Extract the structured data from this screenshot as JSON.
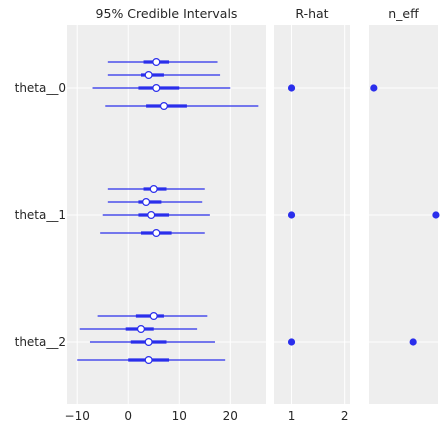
{
  "chart_data": {
    "type": "forest",
    "color": "#2a2eec",
    "rows": [
      "theta__0",
      "theta__1",
      "theta__2"
    ],
    "panels": [
      {
        "title": "95% Credible Intervals",
        "xlim": [
          -12,
          27
        ],
        "xticks": [
          -10,
          0,
          10,
          20
        ],
        "xtick_labels": [
          "−10",
          "0",
          "10",
          "20"
        ],
        "groups": [
          [
            {
              "lo": -4,
              "q1": 3,
              "median": 5.5,
              "q3": 8,
              "hi": 17.5
            },
            {
              "lo": -4,
              "q1": 2.5,
              "median": 4,
              "q3": 7,
              "hi": 18
            },
            {
              "lo": -7,
              "q1": 2,
              "median": 5.5,
              "q3": 10,
              "hi": 20
            },
            {
              "lo": -4.5,
              "q1": 3.5,
              "median": 7,
              "q3": 11.5,
              "hi": 25.5
            }
          ],
          [
            {
              "lo": -4,
              "q1": 3,
              "median": 5,
              "q3": 7.5,
              "hi": 15
            },
            {
              "lo": -4,
              "q1": 2,
              "median": 3.5,
              "q3": 6.5,
              "hi": 14.5
            },
            {
              "lo": -5,
              "q1": 2,
              "median": 4.5,
              "q3": 8,
              "hi": 16
            },
            {
              "lo": -5.5,
              "q1": 2.5,
              "median": 5.5,
              "q3": 8.5,
              "hi": 15
            }
          ],
          [
            {
              "lo": -6,
              "q1": 1.5,
              "median": 5,
              "q3": 7,
              "hi": 15.5
            },
            {
              "lo": -9.5,
              "q1": -0.5,
              "median": 2.5,
              "q3": 5,
              "hi": 13.5
            },
            {
              "lo": -7.5,
              "q1": 0.5,
              "median": 4,
              "q3": 7.5,
              "hi": 17
            },
            {
              "lo": -10,
              "q1": 0,
              "median": 4,
              "q3": 8,
              "hi": 19
            }
          ]
        ]
      },
      {
        "title": "R-hat",
        "xlim": [
          0.67,
          2.1
        ],
        "xticks": [
          1,
          2
        ],
        "xtick_labels": [
          "1",
          "2"
        ],
        "values": [
          1.0,
          1.0,
          1.0
        ]
      },
      {
        "title": "n_eff",
        "xlim": [
          0,
          1
        ],
        "xticks": [],
        "xtick_labels": [],
        "values": [
          0.07,
          0.97,
          0.64
        ]
      }
    ]
  }
}
